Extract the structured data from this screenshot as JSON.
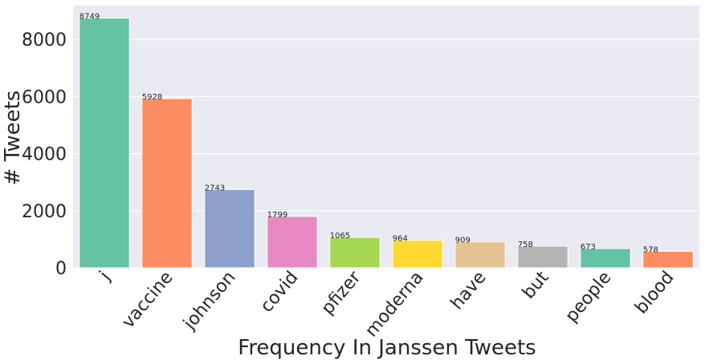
{
  "chart_data": {
    "type": "bar",
    "title": "",
    "xlabel": "Frequency In Janssen Tweets",
    "ylabel": "# Tweets",
    "categories": [
      "j",
      "vaccine",
      "johnson",
      "covid",
      "pfizer",
      "moderna",
      "have",
      "but",
      "people",
      "blood"
    ],
    "values": [
      8749,
      5928,
      2743,
      1799,
      1065,
      964,
      909,
      758,
      673,
      578
    ],
    "data_labels": [
      "8749",
      "5928",
      "2743",
      "1799",
      "1065",
      "964",
      "909",
      "758",
      "673",
      "578"
    ],
    "ylim": [
      0,
      9186
    ],
    "yticks": [
      0,
      2000,
      4000,
      6000,
      8000
    ],
    "ytick_labels": [
      "0",
      "2000",
      "4000",
      "6000",
      "8000"
    ],
    "grid": true,
    "legend": "none",
    "colors": [
      "#66c2a5",
      "#fc8d62",
      "#8da0cb",
      "#e78ac3",
      "#a6d854",
      "#ffd92f",
      "#e5c494",
      "#b3b3b3",
      "#66c2a5",
      "#fc8d62"
    ],
    "background_color": "#eaeaf2",
    "grid_color": "#ffffff"
  }
}
